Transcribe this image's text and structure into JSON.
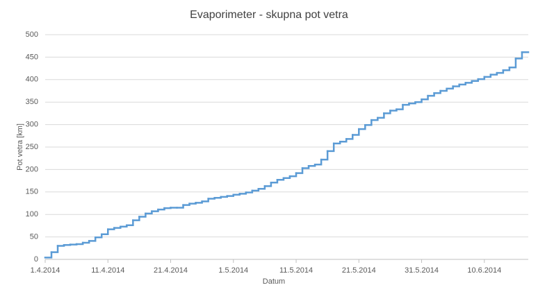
{
  "chart_data": {
    "type": "step",
    "title": "Evaporimeter - skupna pot vetra",
    "x_label": "Datum",
    "y_label": "Pot vetra [km]",
    "x": [
      "2014-04-01",
      "2014-04-02",
      "2014-04-03",
      "2014-04-04",
      "2014-04-05",
      "2014-04-06",
      "2014-04-07",
      "2014-04-08",
      "2014-04-09",
      "2014-04-10",
      "2014-04-11",
      "2014-04-12",
      "2014-04-13",
      "2014-04-14",
      "2014-04-15",
      "2014-04-16",
      "2014-04-17",
      "2014-04-18",
      "2014-04-19",
      "2014-04-20",
      "2014-04-21",
      "2014-04-22",
      "2014-04-23",
      "2014-04-24",
      "2014-04-25",
      "2014-04-26",
      "2014-04-27",
      "2014-04-28",
      "2014-04-29",
      "2014-04-30",
      "2014-05-01",
      "2014-05-02",
      "2014-05-03",
      "2014-05-04",
      "2014-05-05",
      "2014-05-06",
      "2014-05-07",
      "2014-05-08",
      "2014-05-09",
      "2014-05-10",
      "2014-05-11",
      "2014-05-12",
      "2014-05-13",
      "2014-05-14",
      "2014-05-15",
      "2014-05-16",
      "2014-05-17",
      "2014-05-18",
      "2014-05-19",
      "2014-05-20",
      "2014-05-21",
      "2014-05-22",
      "2014-05-23",
      "2014-05-24",
      "2014-05-25",
      "2014-05-26",
      "2014-05-27",
      "2014-05-28",
      "2014-05-29",
      "2014-05-30",
      "2014-05-31",
      "2014-06-01",
      "2014-06-02",
      "2014-06-03",
      "2014-06-04",
      "2014-06-05",
      "2014-06-06",
      "2014-06-07",
      "2014-06-08",
      "2014-06-09",
      "2014-06-10",
      "2014-06-11",
      "2014-06-12",
      "2014-06-13",
      "2014-06-14",
      "2014-06-15",
      "2014-06-16"
    ],
    "series": [
      {
        "name": "Pot vetra",
        "color": "#5b9bd5",
        "values": [
          4,
          16,
          30,
          32,
          33,
          34,
          37,
          41,
          49,
          56,
          67,
          70,
          73,
          76,
          87,
          95,
          102,
          107,
          111,
          114,
          115,
          115,
          121,
          124,
          126,
          129,
          135,
          137,
          139,
          141,
          144,
          146,
          149,
          153,
          157,
          163,
          171,
          177,
          181,
          185,
          192,
          203,
          208,
          211,
          222,
          241,
          258,
          262,
          268,
          277,
          290,
          299,
          310,
          315,
          325,
          331,
          334,
          344,
          347,
          350,
          356,
          364,
          370,
          375,
          380,
          385,
          389,
          393,
          397,
          401,
          406,
          411,
          415,
          421,
          427,
          447,
          461
        ]
      }
    ],
    "xlim": [
      "2014-04-01",
      "2014-06-17"
    ],
    "xticks": [
      {
        "value": "2014-04-01",
        "label": "1.4.2014"
      },
      {
        "value": "2014-04-11",
        "label": "11.4.2014"
      },
      {
        "value": "2014-04-21",
        "label": "21.4.2014"
      },
      {
        "value": "2014-05-01",
        "label": "1.5.2014"
      },
      {
        "value": "2014-05-11",
        "label": "11.5.2014"
      },
      {
        "value": "2014-05-21",
        "label": "21.5.2014"
      },
      {
        "value": "2014-05-31",
        "label": "31.5.2014"
      },
      {
        "value": "2014-06-10",
        "label": "10.6.2014"
      }
    ],
    "ylim": [
      0,
      500
    ],
    "yticks": [
      0,
      50,
      100,
      150,
      200,
      250,
      300,
      350,
      400,
      450,
      500
    ],
    "grid": true
  }
}
